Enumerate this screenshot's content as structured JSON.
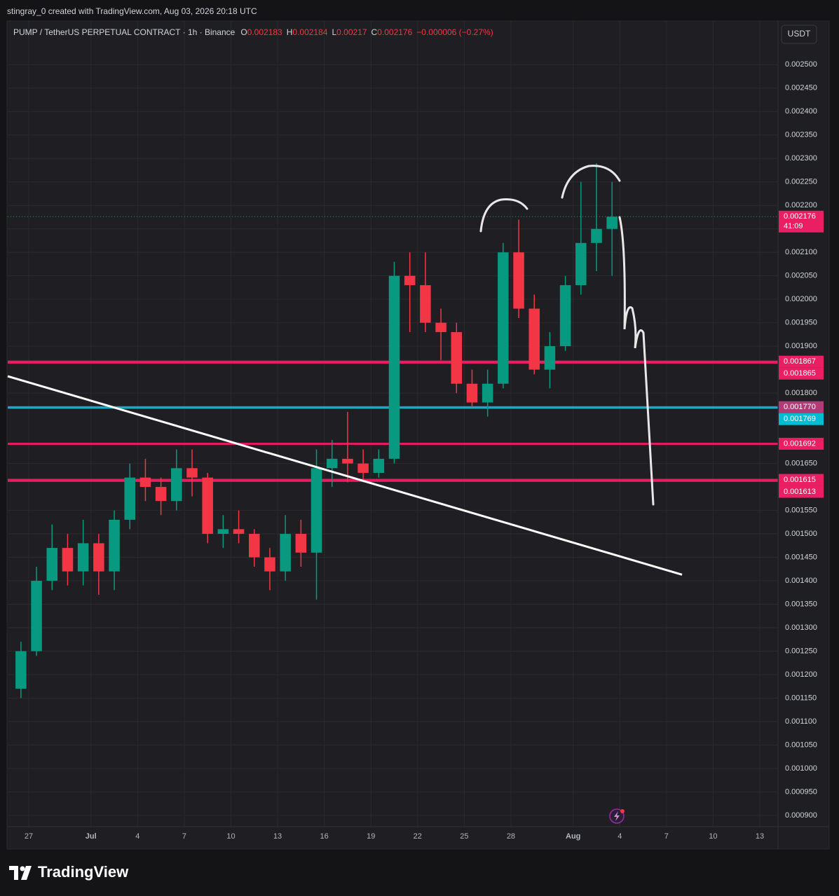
{
  "chart_data": {
    "type": "candlestick",
    "attribution": "stingray_0 created with TradingView.com, Aug 03, 2026 20:18 UTC",
    "title": "PUMP / TetherUS PERPETUAL CONTRACT · 1h · Binance",
    "ohlc": [
      {
        "label": "O",
        "value": 0.002183
      },
      {
        "label": "H",
        "value": 0.002184
      },
      {
        "label": "L",
        "value": 0.00217
      },
      {
        "label": "C",
        "value": 0.002176
      }
    ],
    "change": "−0.000006 (−0.27%)",
    "currency": "USDT",
    "x": [
      "2026-06-26",
      "2026-06-27",
      "2026-06-28",
      "2026-06-29",
      "2026-06-30",
      "2026-07-01",
      "2026-07-02",
      "2026-07-03",
      "2026-07-04",
      "2026-07-05",
      "2026-07-06",
      "2026-07-07",
      "2026-07-08",
      "2026-07-09",
      "2026-07-10",
      "2026-07-11",
      "2026-07-12",
      "2026-07-13",
      "2026-07-14",
      "2026-07-15",
      "2026-07-16",
      "2026-07-17",
      "2026-07-18",
      "2026-07-19",
      "2026-07-20",
      "2026-07-21",
      "2026-07-22",
      "2026-07-23",
      "2026-07-24",
      "2026-07-25",
      "2026-07-26",
      "2026-07-27",
      "2026-07-28",
      "2026-07-29",
      "2026-07-30",
      "2026-07-31",
      "2026-08-01",
      "2026-08-02",
      "2026-08-03"
    ],
    "open": [
      0.00117,
      0.00125,
      0.0014,
      0.00147,
      0.00142,
      0.00148,
      0.00142,
      0.00153,
      0.00162,
      0.0016,
      0.00157,
      0.00164,
      0.00162,
      0.0015,
      0.00151,
      0.0015,
      0.00145,
      0.00142,
      0.0015,
      0.00146,
      0.00164,
      0.00166,
      0.00165,
      0.00163,
      0.00166,
      0.00205,
      0.00203,
      0.00195,
      0.00193,
      0.00182,
      0.00178,
      0.00182,
      0.0021,
      0.00198,
      0.00185,
      0.0019,
      0.00203,
      0.00212,
      0.00215
    ],
    "high": [
      0.00127,
      0.00143,
      0.00152,
      0.0015,
      0.00153,
      0.0015,
      0.00155,
      0.00165,
      0.00166,
      0.00162,
      0.00168,
      0.00168,
      0.00163,
      0.00154,
      0.00155,
      0.00151,
      0.00147,
      0.00154,
      0.00153,
      0.00168,
      0.0017,
      0.00176,
      0.00168,
      0.00168,
      0.00208,
      0.0021,
      0.0021,
      0.00198,
      0.00195,
      0.00185,
      0.00185,
      0.00212,
      0.00217,
      0.00201,
      0.00193,
      0.00205,
      0.00225,
      0.00229,
      0.00225
    ],
    "low": [
      0.00115,
      0.00124,
      0.00138,
      0.00139,
      0.00139,
      0.00137,
      0.00138,
      0.00151,
      0.00157,
      0.00154,
      0.00155,
      0.00158,
      0.00148,
      0.00147,
      0.00148,
      0.00143,
      0.00138,
      0.0014,
      0.00143,
      0.00136,
      0.0016,
      0.00161,
      0.00161,
      0.00162,
      0.00165,
      0.00193,
      0.00193,
      0.00187,
      0.0018,
      0.00177,
      0.00175,
      0.00181,
      0.00196,
      0.00184,
      0.00181,
      0.00189,
      0.00201,
      0.00206,
      0.00205
    ],
    "close": [
      0.00125,
      0.0014,
      0.00147,
      0.00142,
      0.00148,
      0.00142,
      0.00153,
      0.00162,
      0.0016,
      0.00157,
      0.00164,
      0.00162,
      0.0015,
      0.00151,
      0.0015,
      0.00145,
      0.00142,
      0.0015,
      0.00146,
      0.00164,
      0.00166,
      0.00165,
      0.00163,
      0.00166,
      0.00205,
      0.00203,
      0.00195,
      0.00193,
      0.00182,
      0.00178,
      0.00182,
      0.0021,
      0.00198,
      0.00185,
      0.0019,
      0.00203,
      0.00212,
      0.00215,
      0.002176
    ],
    "up_color": "#089981",
    "down_color": "#f23645",
    "xlim": [
      "2026-06-25T15:34",
      "2026-08-14T04:06"
    ],
    "xticks": [
      {
        "value": "2026-06-27",
        "label": "27"
      },
      {
        "value": "2026-07-01",
        "label": "Jul"
      },
      {
        "value": "2026-07-04",
        "label": "4"
      },
      {
        "value": "2026-07-07",
        "label": "7"
      },
      {
        "value": "2026-07-10",
        "label": "10"
      },
      {
        "value": "2026-07-13",
        "label": "13"
      },
      {
        "value": "2026-07-16",
        "label": "16"
      },
      {
        "value": "2026-07-19",
        "label": "19"
      },
      {
        "value": "2026-07-22",
        "label": "22"
      },
      {
        "value": "2026-07-25",
        "label": "25"
      },
      {
        "value": "2026-07-28",
        "label": "28"
      },
      {
        "value": "2026-08-01",
        "label": "Aug"
      },
      {
        "value": "2026-08-04",
        "label": "4"
      },
      {
        "value": "2026-08-07",
        "label": "7"
      },
      {
        "value": "2026-08-10",
        "label": "10"
      },
      {
        "value": "2026-08-13",
        "label": "13"
      }
    ],
    "ylim": [
      0.000876,
      0.002593
    ],
    "yticks": [
      {
        "value": 0.0025,
        "label": "0.002500"
      },
      {
        "value": 0.00245,
        "label": "0.002450"
      },
      {
        "value": 0.0024,
        "label": "0.002400"
      },
      {
        "value": 0.00235,
        "label": "0.002350"
      },
      {
        "value": 0.0023,
        "label": "0.002300"
      },
      {
        "value": 0.00225,
        "label": "0.002250"
      },
      {
        "value": 0.0022,
        "label": "0.002200"
      },
      {
        "value": 0.00215,
        "label": "0.002150"
      },
      {
        "value": 0.0021,
        "label": "0.002100"
      },
      {
        "value": 0.00205,
        "label": "0.002050"
      },
      {
        "value": 0.002,
        "label": "0.002000"
      },
      {
        "value": 0.00195,
        "label": "0.001950"
      },
      {
        "value": 0.0019,
        "label": "0.001900"
      },
      {
        "value": 0.0018,
        "label": "0.001800"
      },
      {
        "value": 0.00165,
        "label": "0.001650"
      },
      {
        "value": 0.00155,
        "label": "0.001550"
      },
      {
        "value": 0.0015,
        "label": "0.001500"
      },
      {
        "value": 0.00145,
        "label": "0.001450"
      },
      {
        "value": 0.0014,
        "label": "0.001400"
      },
      {
        "value": 0.00135,
        "label": "0.001350"
      },
      {
        "value": 0.0013,
        "label": "0.001300"
      },
      {
        "value": 0.00125,
        "label": "0.001250"
      },
      {
        "value": 0.0012,
        "label": "0.001200"
      },
      {
        "value": 0.00115,
        "label": "0.001150"
      },
      {
        "value": 0.0011,
        "label": "0.001100"
      },
      {
        "value": 0.00105,
        "label": "0.001050"
      },
      {
        "value": 0.001,
        "label": "0.001000"
      },
      {
        "value": 0.00095,
        "label": "0.000950"
      },
      {
        "value": 0.0009,
        "label": "0.000900"
      }
    ],
    "grid": true,
    "levels": [
      {
        "value": 0.001867,
        "label": "0.001867",
        "color": "#e91e63"
      },
      {
        "value": 0.001865,
        "label": "0.001865",
        "color": "#e91e63"
      },
      {
        "value": 0.00177,
        "label": "0.001770",
        "color": "#b23a77"
      },
      {
        "value": 0.001769,
        "label": "0.001769",
        "color": "#00bcd4"
      },
      {
        "value": 0.001692,
        "label": "0.001692",
        "color": "#e91e63"
      },
      {
        "value": 0.001615,
        "label": "0.001615",
        "color": "#e91e63"
      },
      {
        "value": 0.001613,
        "label": "0.001613",
        "color": "#e91e63"
      }
    ],
    "current": {
      "value": 0.002176,
      "label": "0.002176",
      "countdown": "41:09",
      "color": "#f23645"
    },
    "trendline": {
      "x": [
        "2026-06-25T15:34",
        "2026-08-08T00:00"
      ],
      "y": [
        0.001836,
        0.001413
      ],
      "color": "#ffffff"
    }
  },
  "footer": {
    "brand": "TradingView"
  }
}
